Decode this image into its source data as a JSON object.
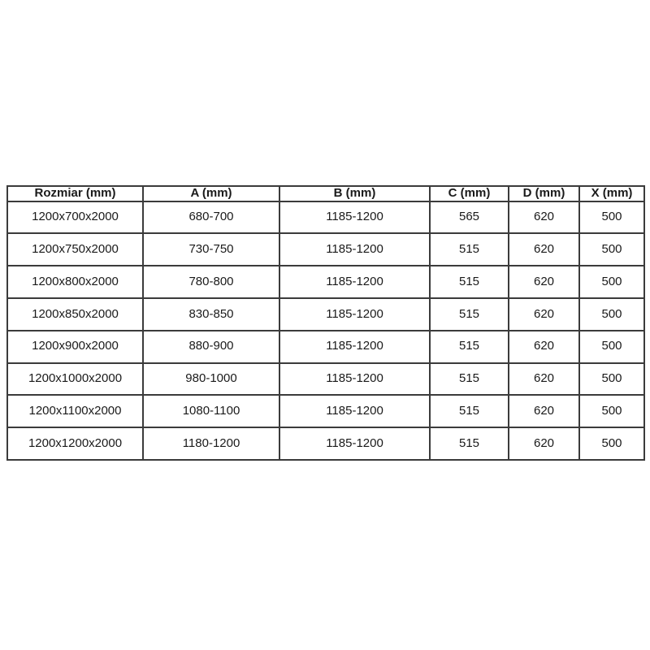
{
  "colors": {
    "background": "#ffffff",
    "border": "#3b3b3b",
    "text": "#1a1a1a"
  },
  "table": {
    "headers": [
      "Rozmiar (mm)",
      "A (mm)",
      "B (mm)",
      "C (mm)",
      "D (mm)",
      "X (mm)"
    ],
    "rows": [
      [
        "1200x700x2000",
        "680-700",
        "1185-1200",
        "565",
        "620",
        "500"
      ],
      [
        "1200x750x2000",
        "730-750",
        "1185-1200",
        "515",
        "620",
        "500"
      ],
      [
        "1200x800x2000",
        "780-800",
        "1185-1200",
        "515",
        "620",
        "500"
      ],
      [
        "1200x850x2000",
        "830-850",
        "1185-1200",
        "515",
        "620",
        "500"
      ],
      [
        "1200x900x2000",
        "880-900",
        "1185-1200",
        "515",
        "620",
        "500"
      ],
      [
        "1200x1000x2000",
        "980-1000",
        "1185-1200",
        "515",
        "620",
        "500"
      ],
      [
        "1200x1100x2000",
        "1080-1100",
        "1185-1200",
        "515",
        "620",
        "500"
      ],
      [
        "1200x1200x2000",
        "1180-1200",
        "1185-1200",
        "515",
        "620",
        "500"
      ]
    ]
  }
}
